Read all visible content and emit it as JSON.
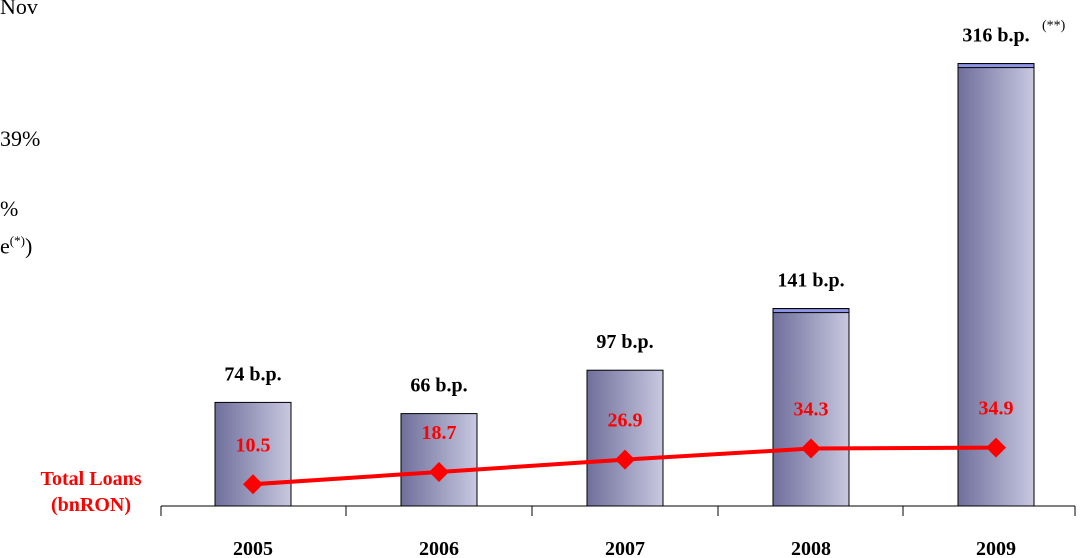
{
  "side_text": {
    "line1": "Nov",
    "line2": "39%",
    "line3": "%",
    "line4_text": "e",
    "line4_sup": "(*)",
    "line4_close": ")"
  },
  "series_label": {
    "line1": "Total Loans",
    "line2": "(bnRON)"
  },
  "chart_data": {
    "type": "bar",
    "categories": [
      "2005",
      "2006",
      "2007",
      "2008",
      "2009"
    ],
    "series": [
      {
        "type": "bar",
        "values": [
          74,
          66,
          97,
          141,
          316
        ],
        "labels": [
          "74 b.p.",
          "66 b.p.",
          "97 b.p.",
          "141 b.p.",
          "316 b.p."
        ],
        "label_sup": [
          "",
          "",
          "",
          "",
          "(**)"
        ]
      },
      {
        "type": "line",
        "name": "Total Loans (bnRON)",
        "values": [
          10.5,
          18.7,
          26.9,
          34.3,
          34.9
        ],
        "labels": [
          "10.5",
          "18.7",
          "26.9",
          "34.3",
          "34.9"
        ]
      }
    ],
    "colors": {
      "bar_dark": "#6f6f9c",
      "bar_light": "#c8c8e0",
      "bar_cap": "#8f95e6",
      "line": "#ff0000",
      "marker": "#ff0000",
      "label": "#ff0000"
    }
  }
}
